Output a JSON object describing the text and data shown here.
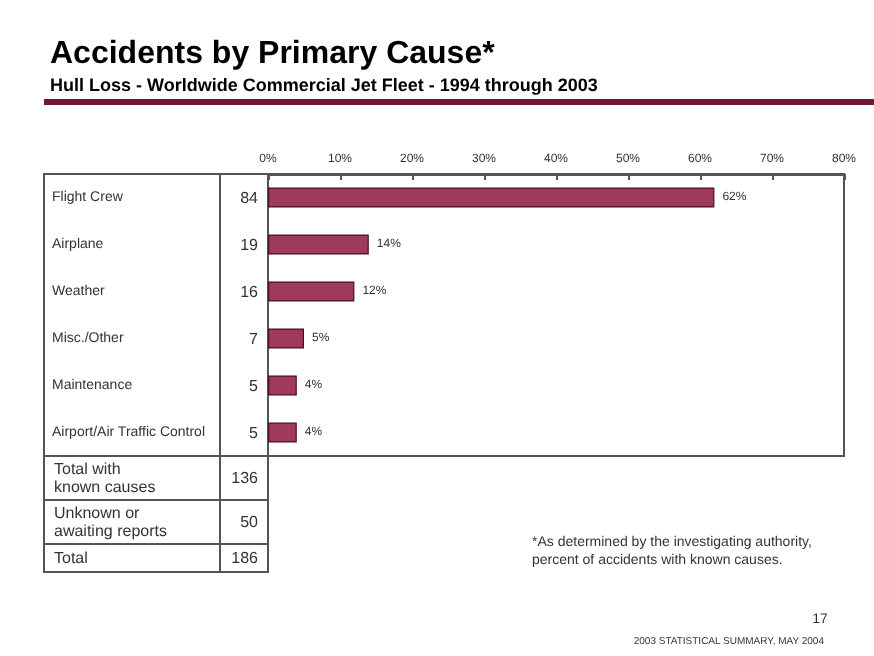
{
  "chart_data": {
    "type": "bar",
    "orientation": "horizontal",
    "title": "Accidents by Primary Cause*",
    "subtitle": "Hull Loss - Worldwide Commercial Jet Fleet - 1994 through 2003",
    "categories": [
      "Flight Crew",
      "Airplane",
      "Weather",
      "Misc./Other",
      "Maintenance",
      "Airport/Air Traffic Control"
    ],
    "values": [
      62,
      14,
      12,
      5,
      4,
      4
    ],
    "value_labels": [
      "62%",
      "14%",
      "12%",
      "5%",
      "4%",
      "4%"
    ],
    "color": "#a03a5c",
    "xlim": [
      0,
      80
    ],
    "xticks": [
      {
        "value": 0,
        "label": "0%"
      },
      {
        "value": 10,
        "label": "10%"
      },
      {
        "value": 20,
        "label": "20%"
      },
      {
        "value": 30,
        "label": "30%"
      },
      {
        "value": 40,
        "label": "40%"
      },
      {
        "value": 50,
        "label": "50%"
      },
      {
        "value": 60,
        "label": "60%"
      },
      {
        "value": 70,
        "label": "70%"
      },
      {
        "value": 80,
        "label": "80%"
      }
    ],
    "grid": false,
    "annotations": [
      "84",
      "19",
      "16",
      "7",
      "5",
      "5",
      "Total with\nknown causes",
      "136",
      "Unknown or\nawaiting reports",
      "50",
      "Total",
      "186",
      "*As determined by the investigating authority,\npercent of accidents with known causes.",
      "17",
      "2003 STATISTICAL SUMMARY, MAY 2004"
    ]
  }
}
